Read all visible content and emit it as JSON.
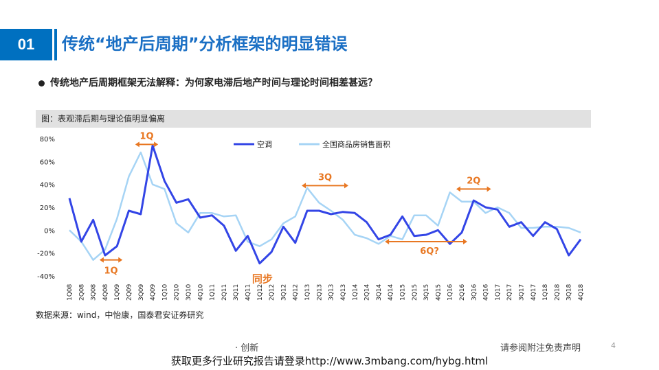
{
  "header": {
    "section_number": "01",
    "title": "传统“地产后周期”分析框架的明显错误"
  },
  "bullet": "传统地产后周期框架无法解释：为何家电滞后地产时间与理论时间相差甚远？",
  "caption": "图：表观滞后期与理论值明显偏离",
  "source": "数据来源：wind，中怡康，国泰君安证券研究",
  "footer": {
    "mid": "· 创新",
    "right": "请参阅附注免责声明",
    "page": "4",
    "watermark": "获取更多行业研究报告请登录http://www.3mbang.com/hybg.html"
  },
  "colors": {
    "accent": "#0070c0",
    "series_ac": "#3345e6",
    "series_area": "#a6d4f5",
    "annotation": "#e87722"
  },
  "chart_data": {
    "type": "line",
    "categories": [
      "1Q08",
      "2Q08",
      "3Q08",
      "4Q08",
      "1Q09",
      "2Q09",
      "3Q09",
      "4Q09",
      "1Q10",
      "2Q10",
      "3Q10",
      "4Q10",
      "1Q11",
      "2Q11",
      "3Q11",
      "4Q11",
      "1Q12",
      "2Q12",
      "3Q12",
      "4Q12",
      "1Q13",
      "2Q13",
      "3Q13",
      "4Q13",
      "1Q14",
      "2Q14",
      "3Q14",
      "4Q14",
      "1Q15",
      "2Q15",
      "3Q15",
      "4Q15",
      "1Q16",
      "2Q16",
      "3Q16",
      "4Q16",
      "1Q17",
      "2Q17",
      "3Q17",
      "4Q17",
      "1Q18",
      "2Q18",
      "3Q18",
      "4Q18"
    ],
    "series": [
      {
        "name": "空调",
        "values": [
          28,
          -10,
          9,
          -22,
          -14,
          17,
          14,
          74,
          43,
          24,
          27,
          11,
          13,
          4,
          -18,
          -5,
          -29,
          -19,
          3,
          -11,
          17,
          17,
          14,
          16,
          15,
          7,
          -8,
          -4,
          12,
          -5,
          -4,
          0,
          -12,
          -2,
          26,
          20,
          18,
          3,
          7,
          -5,
          7,
          1,
          -22,
          -8
        ]
      },
      {
        "name": "全国商品房销售面积",
        "values": [
          0,
          -10,
          -26,
          -17,
          10,
          47,
          68,
          40,
          36,
          6,
          -2,
          15,
          15,
          12,
          13,
          -10,
          -14,
          -8,
          6,
          12,
          37,
          24,
          17,
          9,
          -4,
          -7,
          -12,
          -5,
          -8,
          13,
          13,
          4,
          33,
          25,
          25,
          15,
          20,
          15,
          2,
          2,
          3,
          3,
          2,
          -2
        ]
      }
    ],
    "ylim": [
      -40,
      80
    ],
    "yticks": [
      -40,
      -20,
      0,
      20,
      40,
      60,
      80
    ],
    "ytick_labels": [
      "-40%",
      "-20%",
      "0%",
      "20%",
      "40%",
      "60%",
      "80%"
    ],
    "legend_position": "top-center",
    "grid": false,
    "annotations": [
      {
        "label": "1Q",
        "x_from": "3Q09",
        "x_to": "4Q09",
        "y": 75
      },
      {
        "label": "1Q",
        "x_from": "4Q08",
        "x_to": "1Q09",
        "y": -26
      },
      {
        "label": "3Q",
        "x_from": "1Q13",
        "x_to": "4Q13",
        "y": 39
      },
      {
        "label": "2Q",
        "x_from": "2Q16",
        "x_to": "4Q16",
        "y": 36
      },
      {
        "label": "6Q?",
        "x_from": "4Q14",
        "x_to": "2Q16",
        "y": -10
      },
      {
        "label": "同步",
        "x_from": "1Q12",
        "x_to": "1Q12",
        "y": -35
      }
    ]
  }
}
